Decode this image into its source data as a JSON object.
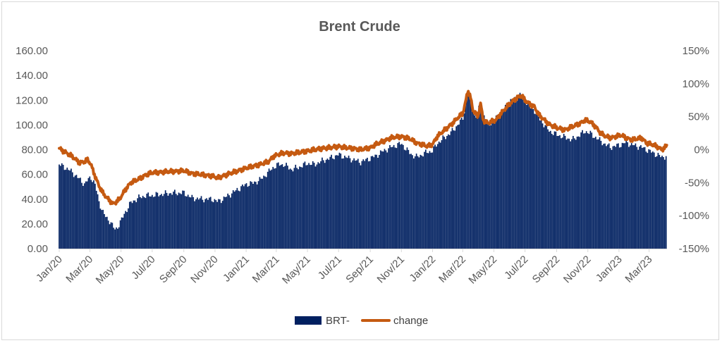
{
  "chart_data": {
    "type": "bar+line",
    "title": "Brent Crude",
    "xlabel": "",
    "ylabel": "",
    "y_left_lim": [
      0,
      160
    ],
    "y_right_lim": [
      -150,
      150
    ],
    "y_left_ticks": [
      "160.00",
      "140.00",
      "120.00",
      "100.00",
      "80.00",
      "60.00",
      "40.00",
      "20.00",
      "0.00"
    ],
    "y_left_tick_values": [
      160,
      140,
      120,
      100,
      80,
      60,
      40,
      20,
      0
    ],
    "y_right_ticks": [
      "150%",
      "100%",
      "50%",
      "0%",
      "-50%",
      "-100%",
      "-150%"
    ],
    "y_right_tick_values": [
      150,
      100,
      50,
      0,
      -50,
      -100,
      -150
    ],
    "x_ticks": [
      "Jan/20",
      "Mar/20",
      "May/20",
      "Jul/20",
      "Sep/20",
      "Nov/20",
      "Jan/21",
      "Mar/21",
      "May/21",
      "Jul/21",
      "Sep/21",
      "Nov/21",
      "Jan/22",
      "Mar/22",
      "May/22",
      "Jul/22",
      "Sep/22",
      "Nov/22",
      "Jan/23",
      "Mar/23"
    ],
    "x_tick_days": [
      0,
      60,
      121,
      182,
      244,
      305,
      366,
      425,
      486,
      547,
      609,
      670,
      731,
      790,
      851,
      912,
      974,
      1035,
      1096,
      1155
    ],
    "x_range_days": [
      0,
      1190
    ],
    "grid": false,
    "legend_position": "bottom",
    "colors": {
      "bar": "#002060",
      "line": "#c55a11"
    },
    "anchors_day": [
      0,
      10,
      25,
      40,
      50,
      55,
      62,
      70,
      78,
      85,
      92,
      100,
      105,
      110,
      118,
      130,
      140,
      155,
      170,
      182,
      200,
      220,
      244,
      260,
      280,
      300,
      310,
      320,
      335,
      350,
      366,
      380,
      395,
      410,
      420,
      430,
      440,
      455,
      470,
      486,
      500,
      515,
      530,
      547,
      560,
      575,
      590,
      609,
      620,
      635,
      650,
      670,
      680,
      690,
      700,
      710,
      720,
      731,
      740,
      755,
      770,
      780,
      790,
      795,
      800,
      805,
      810,
      815,
      820,
      825,
      830,
      835,
      840,
      845,
      855,
      865,
      880,
      895,
      905,
      912,
      920,
      930,
      940,
      950,
      960,
      975,
      990,
      1005,
      1020,
      1030,
      1040,
      1050,
      1060,
      1070,
      1080,
      1090,
      1100,
      1110,
      1120,
      1130,
      1140,
      1150,
      1160,
      1170,
      1180,
      1190
    ],
    "brent_usd": [
      68,
      66,
      62,
      56,
      52,
      55,
      58,
      52,
      38,
      30,
      25,
      22,
      18,
      15,
      20,
      30,
      37,
      41,
      43,
      43,
      44,
      45,
      45,
      41,
      40,
      40,
      38,
      40,
      44,
      48,
      52,
      53,
      56,
      62,
      66,
      68,
      68,
      64,
      66,
      69,
      68,
      71,
      73,
      76,
      74,
      72,
      70,
      73,
      75,
      79,
      82,
      85,
      80,
      76,
      74,
      76,
      78,
      79,
      85,
      90,
      95,
      100,
      105,
      115,
      128,
      122,
      112,
      105,
      110,
      120,
      108,
      105,
      100,
      102,
      106,
      110,
      118,
      122,
      125,
      120,
      115,
      112,
      105,
      100,
      95,
      92,
      90,
      88,
      92,
      95,
      93,
      90,
      87,
      84,
      82,
      83,
      84,
      86,
      84,
      83,
      82,
      80,
      78,
      76,
      74,
      75
    ],
    "change_pct": [
      2,
      -3,
      -10,
      -20,
      -18,
      -15,
      -22,
      -40,
      -55,
      -65,
      -72,
      -78,
      -82,
      -80,
      -75,
      -60,
      -50,
      -45,
      -38,
      -35,
      -34,
      -33,
      -32,
      -36,
      -38,
      -40,
      -43,
      -40,
      -36,
      -32,
      -28,
      -25,
      -22,
      -18,
      -10,
      -7,
      -5,
      -6,
      -4,
      -2,
      0,
      2,
      3,
      5,
      3,
      2,
      0,
      3,
      8,
      13,
      18,
      20,
      18,
      15,
      10,
      8,
      5,
      8,
      20,
      30,
      40,
      48,
      55,
      70,
      90,
      80,
      60,
      55,
      50,
      70,
      45,
      42,
      40,
      42,
      45,
      55,
      68,
      78,
      82,
      75,
      70,
      65,
      52,
      45,
      38,
      33,
      30,
      35,
      40,
      45,
      42,
      35,
      25,
      20,
      18,
      20,
      22,
      18,
      15,
      16,
      18,
      10,
      8,
      5,
      0,
      6
    ]
  },
  "legend": {
    "bar_label": "BRT-",
    "line_label": "change"
  }
}
